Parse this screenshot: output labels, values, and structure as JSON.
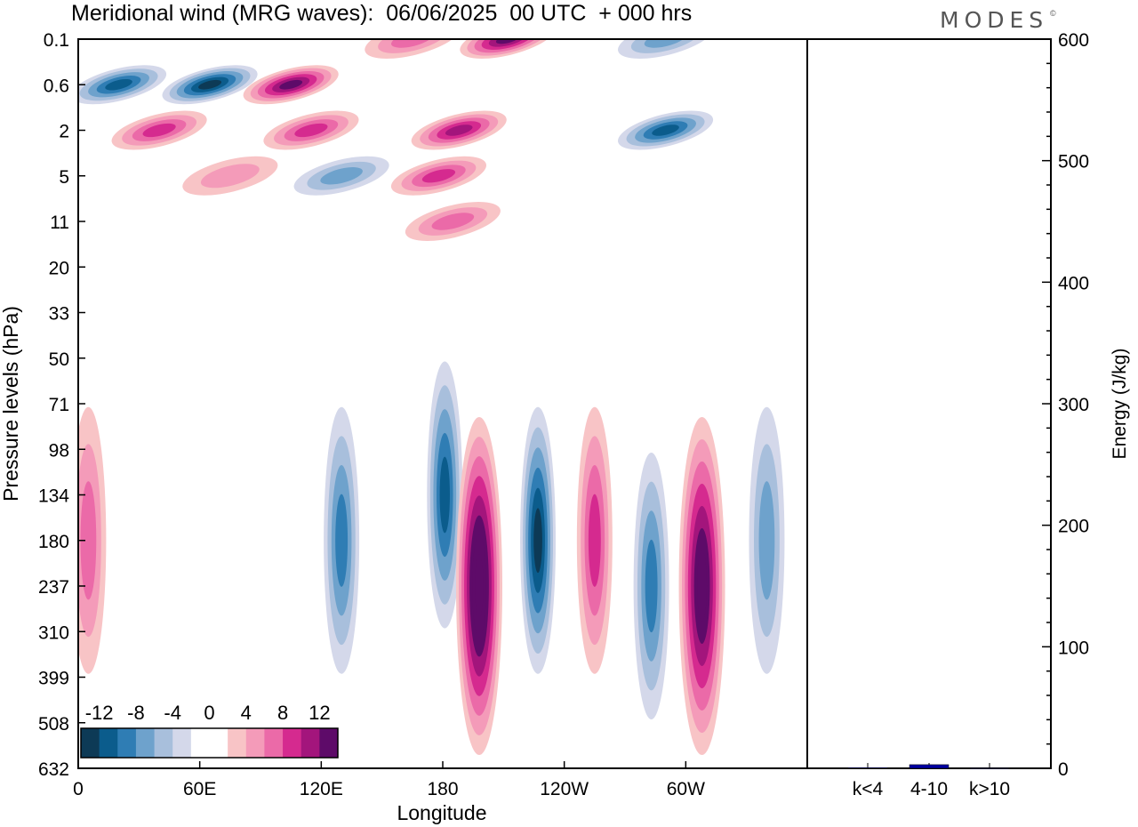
{
  "brand": {
    "text": "MODES",
    "mark": "©"
  },
  "chart_data": [
    {
      "type": "heatmap",
      "title": "Meridional wind (MRG waves):  06/06/2025  00 UTC  + 000 hrs",
      "xlabel": "Longitude",
      "ylabel": "Pressure levels (hPa)",
      "x_ticks": [
        "0",
        "60E",
        "120E",
        "180",
        "120W",
        "60W"
      ],
      "y_ticks": [
        "0.1",
        "0.6",
        "2",
        "5",
        "11",
        "20",
        "33",
        "50",
        "71",
        "98",
        "134",
        "180",
        "237",
        "310",
        "399",
        "508",
        "632"
      ],
      "colorbar": {
        "labels": [
          "-12",
          "-8",
          "-4",
          "0",
          "4",
          "8",
          "12"
        ],
        "colors": [
          "#0d3a56",
          "#0b5c8c",
          "#2f7db4",
          "#6ea2cc",
          "#a8bfdc",
          "#d4d8ea",
          "#ffffff",
          "#ffffff",
          "#f8c4c6",
          "#f49bb9",
          "#eb6aa8",
          "#d52a8f",
          "#a3157c",
          "#5e0b69"
        ]
      },
      "features": [
        {
          "lon": 20,
          "level": "0.6",
          "value": -10
        },
        {
          "lon": 65,
          "level": "0.6",
          "value": -12
        },
        {
          "lon": 105,
          "level": "0.6",
          "value": 12
        },
        {
          "lon": 40,
          "level": "2",
          "value": 8
        },
        {
          "lon": 115,
          "level": "2",
          "value": 8
        },
        {
          "lon": 165,
          "level": "0.1",
          "value": 6
        },
        {
          "lon": 212,
          "level": "0.1",
          "value": 13
        },
        {
          "lon": 188,
          "level": "2",
          "value": 10
        },
        {
          "lon": 290,
          "level": "2",
          "value": -10
        },
        {
          "lon": 290,
          "level": "0.1",
          "value": -6
        },
        {
          "lon": 178,
          "level": "5",
          "value": 8
        },
        {
          "lon": 185,
          "level": "11",
          "value": 6
        },
        {
          "lon": 75,
          "level": "5",
          "value": 4
        },
        {
          "lon": 130,
          "level": "5",
          "value": -6
        },
        {
          "lon": 130,
          "level": "180",
          "value": -8
        },
        {
          "lon": 181,
          "level": "134",
          "value": -10
        },
        {
          "lon": 198,
          "level": "237",
          "value": 16
        },
        {
          "lon": 227,
          "level": "180",
          "value": -12
        },
        {
          "lon": 255,
          "level": "180",
          "value": 9
        },
        {
          "lon": 283,
          "level": "237",
          "value": -9
        },
        {
          "lon": 308,
          "level": "237",
          "value": 14
        },
        {
          "lon": 340,
          "level": "180",
          "value": -6
        },
        {
          "lon": 5,
          "level": "180",
          "value": 6
        }
      ]
    },
    {
      "type": "bar",
      "categories": [
        "k<4",
        "4-10",
        "k>10"
      ],
      "values": [
        0.5,
        3,
        0.3
      ],
      "ylabel": "Energy (J/kg)",
      "ylim": [
        0,
        600
      ],
      "y_ticks": [
        "0",
        "100",
        "200",
        "300",
        "400",
        "500",
        "600"
      ],
      "colors": [
        "#000080",
        "#0000a0",
        "#000080"
      ]
    }
  ]
}
